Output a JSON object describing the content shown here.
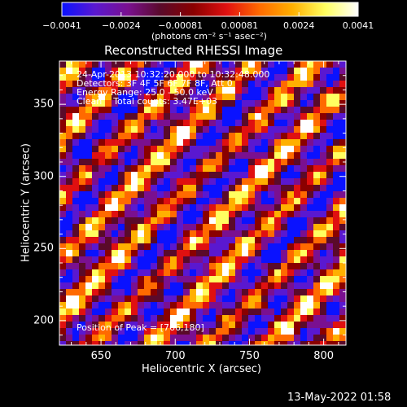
{
  "colorbar": {
    "min": -0.0041,
    "max": 0.0041,
    "tick_labels": [
      "−0.0041",
      "−0.0024",
      "−0.00081",
      "0.00081",
      "0.0024",
      "0.0041"
    ],
    "units_label": "(photons cm⁻² s⁻¹ asec⁻²)",
    "palette": [
      "#0a12ff",
      "#5a18d0",
      "#7a1090",
      "#5a0a2a",
      "#8a0000",
      "#e01010",
      "#ff6a00",
      "#ffb000",
      "#ffff60",
      "#ffffff"
    ]
  },
  "chart_data": {
    "type": "heatmap",
    "title": "Reconstructed RHESSI Image",
    "xlabel": "Heliocentric X (arcsec)",
    "ylabel": "Heliocentric Y (arcsec)",
    "xlim": [
      622,
      815
    ],
    "ylim": [
      183,
      380
    ],
    "xticks": [
      650,
      700,
      750,
      800
    ],
    "yticks": [
      200,
      250,
      300,
      350
    ],
    "x_tick_labels": [
      "650",
      "700",
      "750",
      "800"
    ],
    "y_tick_labels": [
      "200",
      "250",
      "300",
      "350"
    ],
    "annotations": [
      "24-Apr-2013 10:32:20.000 to 10:32:48.000",
      "Detectors: 3F 4F 5F 6F 7F 8F, Att 0",
      "Energy Range: 25.0 - 50.0 keV",
      "Clean    Total counts: 3.47E+03"
    ],
    "peak_label": "Position of Peak = [766,180]",
    "peak_position": [
      766,
      180
    ]
  },
  "footer": {
    "timestamp": "13-May-2022 01:58"
  }
}
